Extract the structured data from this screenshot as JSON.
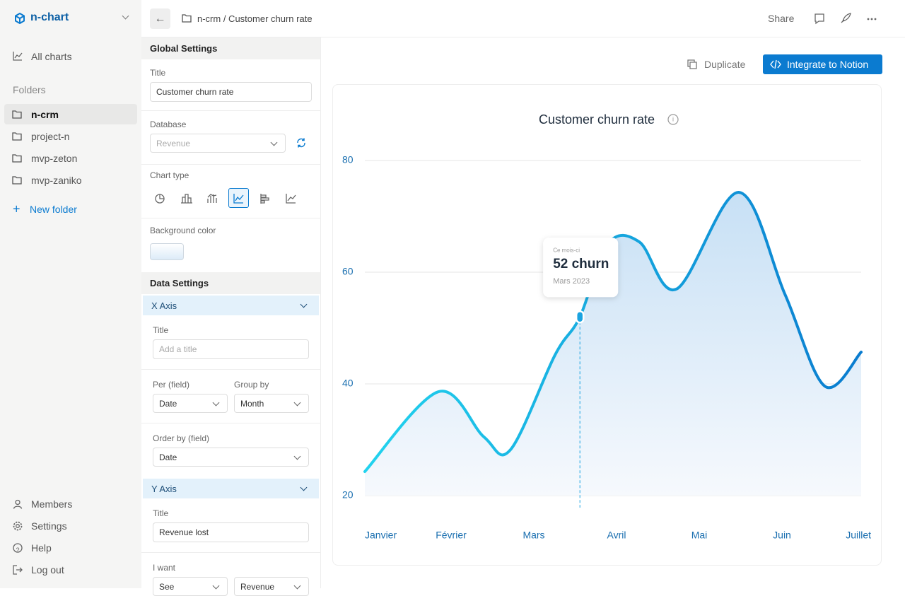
{
  "sidebar": {
    "brand": "n-chart",
    "all_charts": "All charts",
    "folders_heading": "Folders",
    "folders": [
      "n-crm",
      "project-n",
      "mvp-zeton",
      "mvp-zaniko"
    ],
    "new_folder": "New folder",
    "bottom": [
      "Members",
      "Settings",
      "Help",
      "Log out"
    ]
  },
  "topbar": {
    "breadcrumb": "n-crm / Customer churn rate",
    "share": "Share"
  },
  "settings": {
    "global_heading": "Global Settings",
    "title_label": "Title",
    "title_value": "Customer churn rate",
    "database_label": "Database",
    "database_placeholder": "Revenue",
    "chart_type_label": "Chart type",
    "background_label": "Background color",
    "data_heading": "Data Settings",
    "x_axis": {
      "heading": "X Axis",
      "title_label": "Title",
      "title_placeholder": "Add a title",
      "per_label": "Per (field)",
      "per_value": "Date",
      "group_label": "Group by",
      "group_value": "Month",
      "order_label": "Order by (field)",
      "order_value": "Date"
    },
    "y_axis": {
      "heading": "Y Axis",
      "title_label": "Title",
      "title_value": "Revenue lost",
      "want_label": "I want",
      "want_value": "See",
      "field_value": "Revenue"
    }
  },
  "actions": {
    "duplicate": "Duplicate",
    "integrate": "Integrate to Notion"
  },
  "chart_data": {
    "type": "line",
    "title": "Customer churn rate",
    "x": [
      0,
      0.89,
      1.44,
      1.76,
      2.3,
      2.6,
      2.94,
      3.32,
      3.77,
      4.52,
      5.08,
      5.56,
      6
    ],
    "values": [
      24.3,
      38.6,
      30.5,
      28.2,
      45.2,
      52,
      65.1,
      65.4,
      57,
      74.3,
      56,
      39.6,
      45.7
    ],
    "value_labels": [
      null,
      null,
      null,
      null,
      null,
      "52 churn",
      null,
      null,
      null,
      null,
      null,
      null,
      null
    ],
    "tooltip": {
      "title": "Ce mois-ci",
      "subtitle": "Mars 2023"
    },
    "colors": [
      "#22d3ee",
      "#0a7ccf"
    ],
    "xlim": [
      0,
      6
    ],
    "xticks": [
      {
        "value": 0,
        "label": "Janvier"
      },
      {
        "value": 1,
        "label": "Février"
      },
      {
        "value": 2,
        "label": "Mars"
      },
      {
        "value": 3,
        "label": "Avril"
      },
      {
        "value": 4,
        "label": "Mai"
      },
      {
        "value": 5,
        "label": "Juin"
      },
      {
        "value": 6,
        "label": "Juillet"
      }
    ],
    "ylim": [
      20,
      80
    ],
    "yticks": [
      20,
      40,
      60,
      80
    ],
    "grid": true
  }
}
